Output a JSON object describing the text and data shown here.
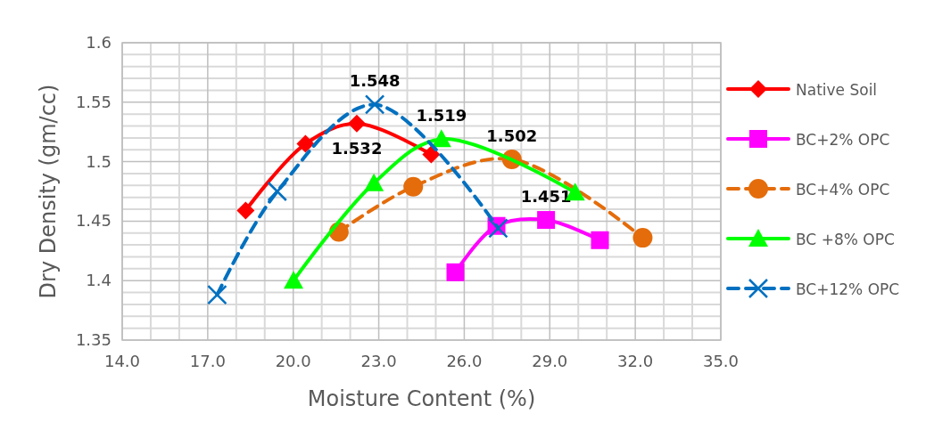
{
  "chart_data": {
    "type": "line",
    "xlabel": "Moisture Content (%)",
    "ylabel": "Dry Density (gm/cc)",
    "xlim": [
      14,
      35
    ],
    "xticks": [
      {
        "value": 14,
        "label": "14.0"
      },
      {
        "value": 17,
        "label": "17.0"
      },
      {
        "value": 20,
        "label": "20.0"
      },
      {
        "value": 23,
        "label": "23.0"
      },
      {
        "value": 26,
        "label": "26.0"
      },
      {
        "value": 29,
        "label": "29.0"
      },
      {
        "value": 32,
        "label": "32.0"
      },
      {
        "value": 35,
        "label": "35.0"
      }
    ],
    "ylim": [
      1.35,
      1.6
    ],
    "yticks": [
      1.35,
      1.4,
      1.45,
      1.5,
      1.55,
      1.6
    ],
    "grid": true,
    "legend": "right",
    "series": [
      {
        "name": "Native Soil",
        "color": "#ff0000",
        "marker": "diamond",
        "line_style": "solid",
        "x": [
          18.33,
          20.43,
          22.23,
          24.84
        ],
        "values": [
          1.459,
          1.515,
          1.532,
          1.506
        ],
        "value_labels": [
          null,
          null,
          "1.532",
          null
        ]
      },
      {
        "name": "BC+2% OPC",
        "color": "#ff00ff",
        "marker": "square",
        "line_style": "solid",
        "x": [
          25.69,
          27.13,
          28.87,
          30.76
        ],
        "values": [
          1.407,
          1.446,
          1.451,
          1.434
        ],
        "value_labels": [
          null,
          null,
          "1.451",
          null
        ]
      },
      {
        "name": "BC+4% OPC",
        "color": "#e46c0a",
        "marker": "circle",
        "line_style": "dashed",
        "x": [
          21.6,
          24.21,
          27.67,
          32.26
        ],
        "values": [
          1.441,
          1.479,
          1.502,
          1.436
        ],
        "value_labels": [
          null,
          null,
          "1.502",
          null
        ]
      },
      {
        "name": "BC +8% OPC",
        "color": "#00ff00",
        "marker": "triangle",
        "line_style": "solid",
        "x": [
          20.01,
          22.83,
          25.2,
          29.89
        ],
        "values": [
          1.4,
          1.482,
          1.519,
          1.474
        ],
        "value_labels": [
          null,
          null,
          "1.519",
          null
        ]
      },
      {
        "name": "BC+12% OPC",
        "color": "#0070c0",
        "marker": "cross",
        "line_style": "dashed",
        "x": [
          17.33,
          19.44,
          22.86,
          27.19
        ],
        "values": [
          1.388,
          1.475,
          1.548,
          1.444
        ],
        "value_labels": [
          null,
          null,
          "1.548",
          null
        ]
      }
    ]
  }
}
